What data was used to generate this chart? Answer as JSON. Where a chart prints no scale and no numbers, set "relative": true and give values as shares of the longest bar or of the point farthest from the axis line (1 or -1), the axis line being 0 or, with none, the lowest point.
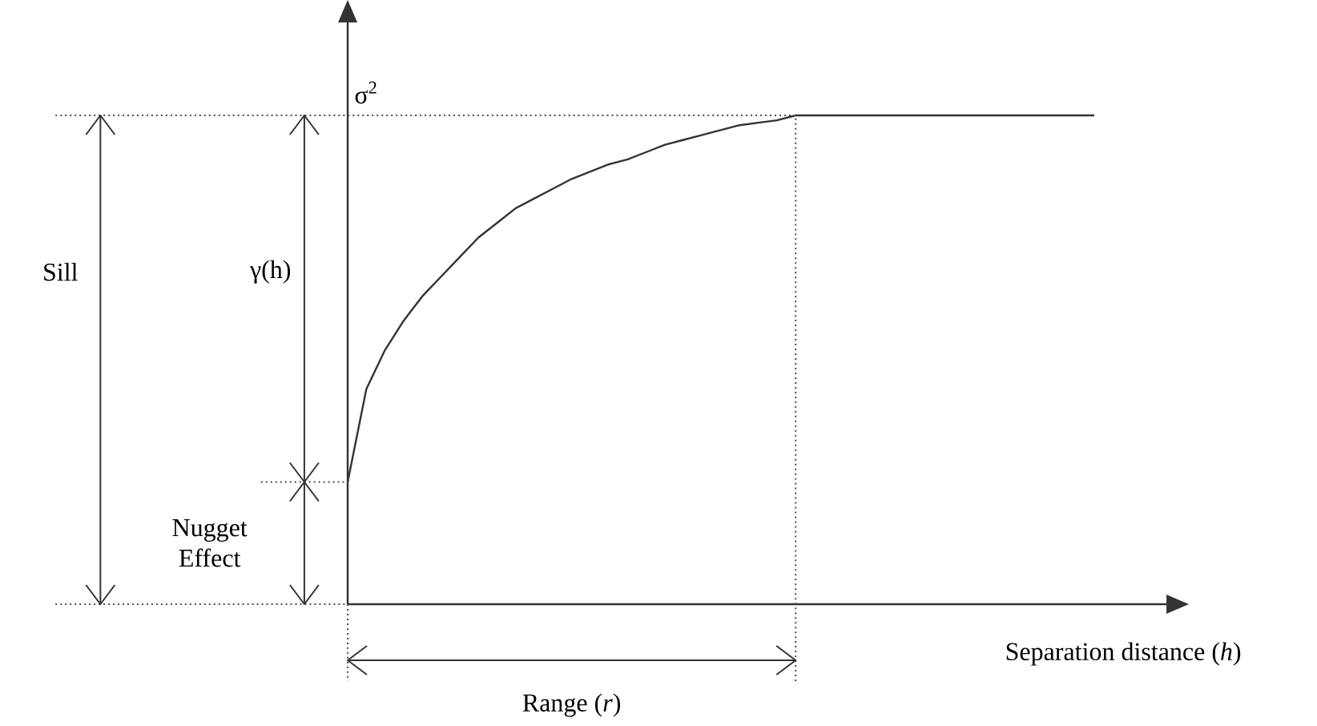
{
  "chart_data": {
    "type": "line",
    "relative": true,
    "xlabel": "Separation distance (*h*)",
    "marker": "none",
    "categories": [
      null,
      null,
      null,
      null,
      null,
      null,
      null,
      null,
      null,
      null,
      null,
      null,
      null,
      null,
      null,
      null,
      null,
      null,
      null,
      null,
      null,
      null,
      null,
      null,
      null,
      null,
      null,
      null,
      null,
      null,
      null,
      null,
      null,
      null,
      null,
      null,
      null,
      null,
      null,
      null,
      null
    ],
    "series": [
      {
        "color": "#333333",
        "line_style": "solid",
        "values": [
          0.25,
          0.44,
          0.52,
          0.58,
          0.63,
          0.67,
          0.71,
          0.75,
          0.78,
          0.81,
          0.83,
          0.85,
          0.87,
          0.885,
          0.9,
          0.91,
          0.925,
          0.94,
          0.95,
          0.96,
          0.97,
          0.98,
          0.985,
          0.99,
          1,
          1,
          1,
          1,
          1,
          1,
          1,
          1,
          1,
          1,
          1,
          1,
          1,
          1,
          1,
          1,
          1
        ]
      }
    ],
    "annotations": [
      "σ$^{2}$",
      "Sill",
      "γ(h)",
      "Nugget Effect",
      "Range (*r*)"
    ]
  }
}
